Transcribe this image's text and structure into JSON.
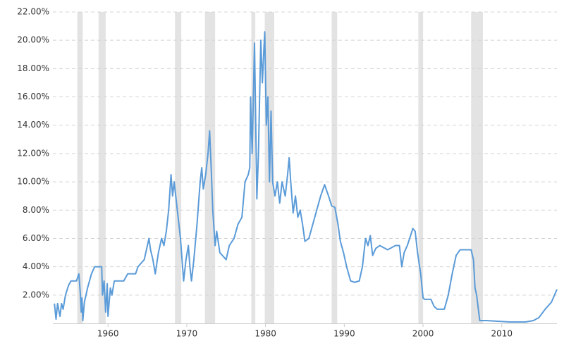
{
  "chart_data": {
    "type": "line",
    "xlim": [
      1953,
      2017
    ],
    "xticks": [
      1960,
      1970,
      1980,
      1990,
      2000,
      2010
    ],
    "ylim": [
      0,
      22
    ],
    "yticks": [
      {
        "value": 2,
        "label": "2.00%"
      },
      {
        "value": 4,
        "label": "4.00%"
      },
      {
        "value": 6,
        "label": "6.00%"
      },
      {
        "value": 8,
        "label": "8.00%"
      },
      {
        "value": 10,
        "label": "10.00%"
      },
      {
        "value": 12,
        "label": "12.00%"
      },
      {
        "value": 14,
        "label": "14.00%"
      },
      {
        "value": 16,
        "label": "16.00%"
      },
      {
        "value": 18,
        "label": "18.00%"
      },
      {
        "value": 20,
        "label": "20.00%"
      },
      {
        "value": 22,
        "label": "22.00%"
      }
    ],
    "grid": true,
    "shade_color": "#e3e3e3",
    "shaded_ranges": [
      [
        1956.1,
        1956.8
      ],
      [
        1958.8,
        1959.7
      ],
      [
        1968.5,
        1969.3
      ],
      [
        1972.3,
        1973.6
      ],
      [
        1978.2,
        1978.7
      ],
      [
        1979.9,
        1981.1
      ],
      [
        1988.4,
        1989.1
      ],
      [
        1999.4,
        2000.0
      ],
      [
        2006.1,
        2007.6
      ]
    ],
    "x": [
      1953.2,
      1953.4,
      1953.6,
      1953.9,
      1954.1,
      1954.3,
      1954.6,
      1955.0,
      1955.3,
      1956.0,
      1956.3,
      1956.5,
      1956.6,
      1956.7,
      1956.8,
      1957.0,
      1957.4,
      1957.9,
      1958.3,
      1959.2,
      1959.3,
      1959.5,
      1959.7,
      1959.9,
      1960.0,
      1960.3,
      1960.5,
      1960.8,
      1962.0,
      1962.5,
      1963.5,
      1963.8,
      1964.6,
      1965.0,
      1965.2,
      1965.4,
      1965.7,
      1966.0,
      1966.4,
      1966.8,
      1967.1,
      1967.4,
      1967.7,
      1968.0,
      1968.2,
      1968.4,
      1968.6,
      1968.8,
      1969.2,
      1969.6,
      1969.9,
      1970.2,
      1970.4,
      1970.6,
      1970.9,
      1971.3,
      1971.7,
      1971.9,
      1972.1,
      1972.4,
      1972.7,
      1972.9,
      1973.1,
      1973.3,
      1973.6,
      1973.8,
      1974.2,
      1975.0,
      1975.4,
      1976.0,
      1976.5,
      1977.0,
      1977.4,
      1977.8,
      1978.0,
      1978.1,
      1978.3,
      1978.6,
      1978.9,
      1979.1,
      1979.4,
      1979.6,
      1979.8,
      1979.9,
      1980.1,
      1980.3,
      1980.5,
      1980.7,
      1980.9,
      1981.2,
      1981.5,
      1981.8,
      1982.1,
      1982.5,
      1982.8,
      1983.0,
      1983.2,
      1983.5,
      1983.8,
      1984.1,
      1984.4,
      1984.7,
      1985.0,
      1985.5,
      1986.0,
      1986.5,
      1987.0,
      1987.5,
      1988.0,
      1988.4,
      1988.8,
      1989.2,
      1989.5,
      1989.9,
      1990.3,
      1990.8,
      1991.3,
      1991.9,
      1992.3,
      1992.7,
      1993.0,
      1993.3,
      1993.6,
      1994.0,
      1994.5,
      1995.5,
      1996.5,
      1997.0,
      1997.3,
      1997.6,
      1998.0,
      1998.3,
      1998.7,
      1999.0,
      1999.3,
      1999.7,
      2000.0,
      2000.2,
      2001.0,
      2001.4,
      2001.8,
      2002.7,
      2003.2,
      2003.7,
      2004.2,
      2004.7,
      2006.1,
      2006.4,
      2006.6,
      2006.8,
      2007.2,
      2008.0,
      2011.0,
      2013.0,
      2014.0,
      2014.7,
      2015.5,
      2016.3,
      2017.0
    ],
    "series": [
      {
        "color": "#5b9bd8",
        "values": [
          1.4,
          0.3,
          1.4,
          0.5,
          1.4,
          1.0,
          2.0,
          2.7,
          3.0,
          3.0,
          3.5,
          2.0,
          0.8,
          1.8,
          0.2,
          1.5,
          2.5,
          3.5,
          4.0,
          4.0,
          2.0,
          3.0,
          0.8,
          2.8,
          0.5,
          2.5,
          2.0,
          3.0,
          3.0,
          3.5,
          3.5,
          4.0,
          4.5,
          5.5,
          6.0,
          5.2,
          4.5,
          3.5,
          5.0,
          6.0,
          5.5,
          6.5,
          8.0,
          10.5,
          9.0,
          10.0,
          9.0,
          8.0,
          6.0,
          3.0,
          4.5,
          5.5,
          4.0,
          3.0,
          4.5,
          7.0,
          10.0,
          11.0,
          9.5,
          10.5,
          12.0,
          13.6,
          11.0,
          8.0,
          5.5,
          6.5,
          5.0,
          4.5,
          5.5,
          6.0,
          7.0,
          7.5,
          10.0,
          10.5,
          11.0,
          16.0,
          12.0,
          19.8,
          8.8,
          12.0,
          20.0,
          17.0,
          19.5,
          20.6,
          14.0,
          16.0,
          10.0,
          15.0,
          10.0,
          9.0,
          10.0,
          8.5,
          10.0,
          9.0,
          10.5,
          11.7,
          10.0,
          7.8,
          9.0,
          7.5,
          8.0,
          7.0,
          5.8,
          6.0,
          7.0,
          8.0,
          9.0,
          9.8,
          9.0,
          8.3,
          8.2,
          7.0,
          5.8,
          5.0,
          4.0,
          3.0,
          2.9,
          3.0,
          4.0,
          6.0,
          5.5,
          6.2,
          4.8,
          5.3,
          5.5,
          5.2,
          5.5,
          5.5,
          4.0,
          5.0,
          5.5,
          6.0,
          6.7,
          6.5,
          5.0,
          3.5,
          1.8,
          1.7,
          1.7,
          1.2,
          1.0,
          1.0,
          2.0,
          3.5,
          4.8,
          5.2,
          5.2,
          4.5,
          2.5,
          2.0,
          0.2,
          0.2,
          0.1,
          0.1,
          0.2,
          0.4,
          1.0,
          1.5,
          2.4
        ]
      }
    ]
  }
}
